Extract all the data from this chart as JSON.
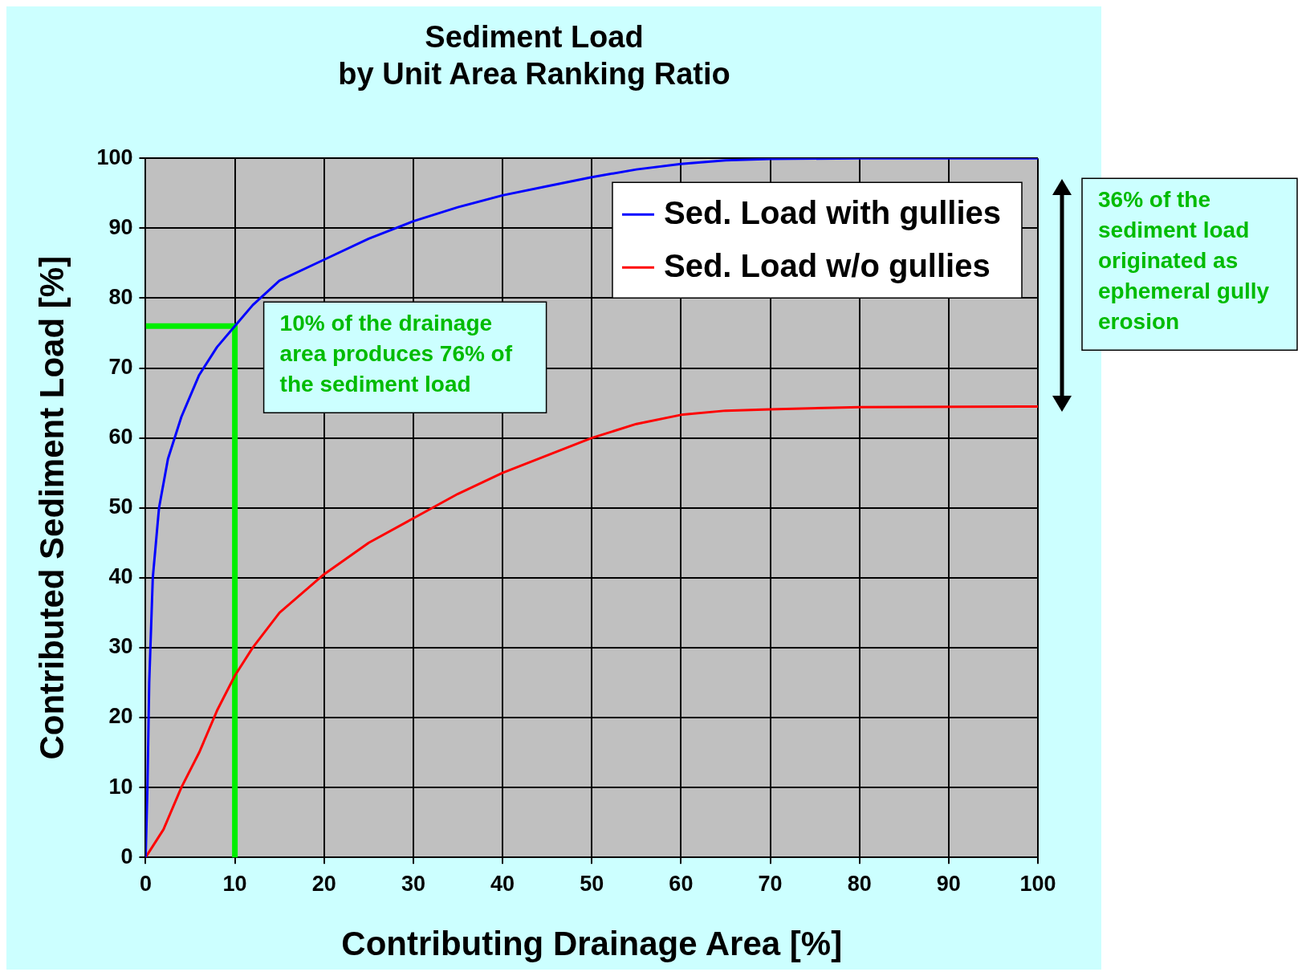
{
  "chart_data": {
    "type": "line",
    "title": "Sediment Load\nby Unit Area Ranking Ratio",
    "xlabel": "Contributing Drainage Area [%]",
    "ylabel": "Contributed Sediment Load [%]",
    "xlim": [
      0,
      100
    ],
    "xticks": [
      0,
      10,
      20,
      30,
      40,
      50,
      60,
      70,
      80,
      90,
      100
    ],
    "ylim": [
      0,
      100
    ],
    "yticks": [
      0,
      10,
      20,
      30,
      40,
      50,
      60,
      70,
      80,
      90,
      100
    ],
    "grid": true,
    "legend": "top right",
    "marker": "none",
    "line_style": "solid",
    "series": [
      {
        "name": "Sed. Load with gullies",
        "color": "#0000ff",
        "x": [
          0,
          0.2,
          0.4,
          0.8,
          1.5,
          2.5,
          4,
          6,
          8,
          10,
          12,
          15,
          20,
          25,
          30,
          35,
          40,
          45,
          50,
          55,
          60,
          65,
          70,
          80,
          100
        ],
        "values": [
          0,
          10,
          25,
          40,
          50,
          57,
          63,
          69,
          73,
          76,
          79,
          82.5,
          85.5,
          88.5,
          91,
          93,
          94.7,
          96,
          97.3,
          98.4,
          99.2,
          99.7,
          99.9,
          100,
          100
        ]
      },
      {
        "name": "Sed. Load w/o gullies",
        "color": "#ff0000",
        "x": [
          0,
          2,
          4,
          6,
          8,
          10,
          12,
          15,
          20,
          25,
          30,
          35,
          40,
          45,
          50,
          55,
          60,
          65,
          70,
          80,
          100
        ],
        "values": [
          0,
          4,
          10,
          15,
          21,
          26,
          30,
          35,
          40.5,
          45,
          48.5,
          52,
          55,
          57.5,
          60,
          62,
          63.3,
          63.9,
          64.1,
          64.4,
          64.5
        ]
      },
      {
        "color": "#00ee00",
        "x": [
          0,
          10,
          10
        ],
        "values": [
          76,
          76,
          0
        ]
      }
    ],
    "annotations": [
      {
        "text": "10% of the drainage area produces 76% of the sediment load",
        "x": 10,
        "y": 76
      },
      "36% of the sediment load originated as ephemeral gully erosion"
    ]
  }
}
